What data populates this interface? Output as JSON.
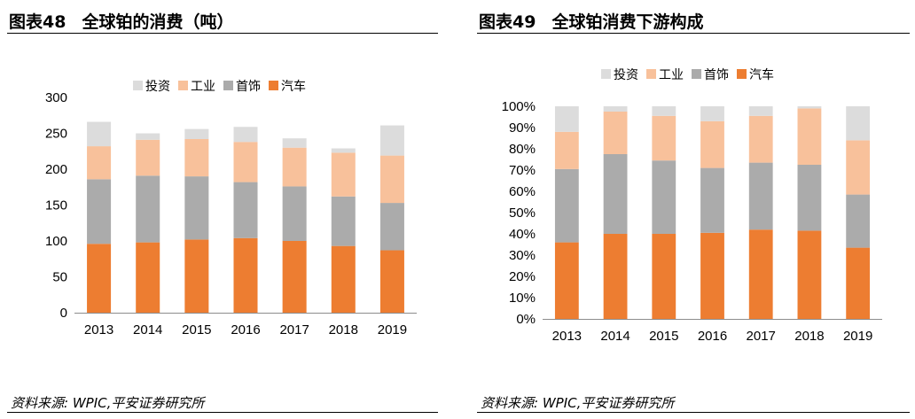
{
  "colors": {
    "auto": "#ED7D31",
    "jewelry": "#ABABAB",
    "industrial": "#F8C19B",
    "investment": "#DCDCDC"
  },
  "left": {
    "title_num": "图表48",
    "title_text": "全球铂的消费（吨）",
    "source": "资料来源: WPIC,平安证券研究所"
  },
  "right": {
    "title_num": "图表49",
    "title_text": "全球铂消费下游构成",
    "source": "资料来源: WPIC,平安证券研究所"
  },
  "chart_data": [
    {
      "type": "bar",
      "stacked": true,
      "title": "全球铂的消费（吨）",
      "categories": [
        "2013",
        "2014",
        "2015",
        "2016",
        "2017",
        "2018",
        "2019"
      ],
      "series": [
        {
          "name": "汽车",
          "color_key": "auto",
          "values": [
            96,
            98,
            102,
            104,
            100,
            93,
            87
          ]
        },
        {
          "name": "首饰",
          "color_key": "jewelry",
          "values": [
            90,
            93,
            88,
            78,
            76,
            69,
            66
          ]
        },
        {
          "name": "工业",
          "color_key": "industrial",
          "values": [
            46,
            50,
            52,
            56,
            54,
            61,
            66
          ]
        },
        {
          "name": "投资",
          "color_key": "investment",
          "values": [
            34,
            9,
            14,
            21,
            13,
            6,
            42
          ]
        }
      ],
      "legend_order": [
        "投资",
        "工业",
        "首饰",
        "汽车"
      ],
      "ylim": [
        0,
        300
      ],
      "yticks": [
        0,
        50,
        100,
        150,
        200,
        250,
        300
      ],
      "ytick_labels": [
        "0",
        "50",
        "100",
        "150",
        "200",
        "250",
        "300"
      ],
      "xlabel": "",
      "ylabel": "",
      "grid": false,
      "legend_position": "top-center"
    },
    {
      "type": "bar",
      "stacked": true,
      "percent": true,
      "title": "全球铂消费下游构成",
      "categories": [
        "2013",
        "2014",
        "2015",
        "2016",
        "2017",
        "2018",
        "2019"
      ],
      "series": [
        {
          "name": "汽车",
          "color_key": "auto",
          "values": [
            36,
            40,
            40,
            40.5,
            42,
            41.5,
            33.5
          ]
        },
        {
          "name": "首饰",
          "color_key": "jewelry",
          "values": [
            34.5,
            37.5,
            34.5,
            30.5,
            31.5,
            31,
            25
          ]
        },
        {
          "name": "工业",
          "color_key": "industrial",
          "values": [
            17.5,
            20,
            21,
            22,
            22,
            26.5,
            25.5
          ]
        },
        {
          "name": "投资",
          "color_key": "investment",
          "values": [
            12,
            2.5,
            4.5,
            7,
            4.5,
            1,
            16
          ]
        }
      ],
      "legend_order": [
        "投资",
        "工业",
        "首饰",
        "汽车"
      ],
      "ylim": [
        0,
        100
      ],
      "yticks": [
        0,
        10,
        20,
        30,
        40,
        50,
        60,
        70,
        80,
        90,
        100
      ],
      "ytick_labels": [
        "0%",
        "10%",
        "20%",
        "30%",
        "40%",
        "50%",
        "60%",
        "70%",
        "80%",
        "90%",
        "100%"
      ],
      "xlabel": "",
      "ylabel": "",
      "grid": false,
      "legend_position": "top-center"
    }
  ]
}
